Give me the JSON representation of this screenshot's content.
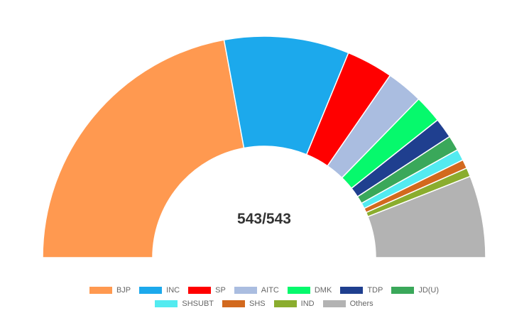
{
  "chart_data": {
    "type": "pie",
    "half_donut": true,
    "center_label": "543/543",
    "categories": [
      "BJP",
      "INC",
      "SP",
      "AITC",
      "DMK",
      "TDP",
      "JD(U)",
      "SHSUBT",
      "SHS",
      "IND",
      "Others"
    ],
    "values": [
      240,
      99,
      37,
      29,
      22,
      16,
      12,
      9,
      7,
      7,
      65
    ],
    "colors": [
      "#ff9950",
      "#1ca9ec",
      "#ff0000",
      "#aabde0",
      "#06f96c",
      "#1f3f8f",
      "#3aa85a",
      "#53ebf0",
      "#d2691e",
      "#8aad2e",
      "#b3b3b3"
    ],
    "legend": "bottom"
  }
}
